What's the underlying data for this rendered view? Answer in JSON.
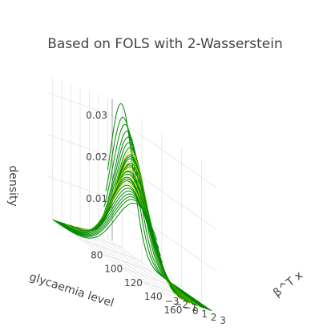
{
  "chart_data": {
    "type": "line",
    "title": "Based on FOLS with 2-Wasserstein",
    "scene": "3d",
    "x_axis": {
      "label": "glycaemia level",
      "ticks": [
        "80",
        "100",
        "120",
        "140",
        "160"
      ],
      "range": [
        70,
        175
      ]
    },
    "y_axis": {
      "label": "β^T x",
      "ticks": [
        "3",
        "2",
        "1",
        "0",
        "−1",
        "−2",
        "−3"
      ],
      "range": [
        -3.5,
        3.5
      ]
    },
    "z_axis": {
      "label": "density",
      "ticks": [
        "0.03",
        "0.02",
        "0.01"
      ],
      "range": [
        0,
        0.034
      ]
    },
    "series_colors": {
      "primary": "#008a00",
      "highlight": "#e8e200"
    },
    "series": [
      {
        "beta": 3.0,
        "mean": 84,
        "sd": 11.5,
        "color": "#008a00"
      },
      {
        "beta": 2.8,
        "mean": 88,
        "sd": 12.5,
        "color": "#008a00"
      },
      {
        "beta": 2.6,
        "mean": 92,
        "sd": 13.0,
        "color": "#008a00"
      },
      {
        "beta": 2.4,
        "mean": 96,
        "sd": 13.5,
        "color": "#008a00"
      },
      {
        "beta": 2.2,
        "mean": 99,
        "sd": 14.0,
        "color": "#008a00"
      },
      {
        "beta": 2.0,
        "mean": 102,
        "sd": 14.5,
        "color": "#008a00"
      },
      {
        "beta": 1.8,
        "mean": 105,
        "sd": 15.0,
        "color": "#008a00"
      },
      {
        "beta": 1.6,
        "mean": 107,
        "sd": 15.5,
        "color": "#e8e200"
      },
      {
        "beta": 1.4,
        "mean": 109,
        "sd": 15.8,
        "color": "#008a00"
      },
      {
        "beta": 1.2,
        "mean": 111,
        "sd": 16.0,
        "color": "#008a00"
      },
      {
        "beta": 1.0,
        "mean": 113,
        "sd": 16.2,
        "color": "#008a00"
      },
      {
        "beta": 0.8,
        "mean": 115,
        "sd": 16.5,
        "color": "#e8e200"
      },
      {
        "beta": 0.6,
        "mean": 117,
        "sd": 16.7,
        "color": "#008a00"
      },
      {
        "beta": 0.4,
        "mean": 118,
        "sd": 17.0,
        "color": "#008a00"
      },
      {
        "beta": 0.2,
        "mean": 120,
        "sd": 17.2,
        "color": "#008a00"
      },
      {
        "beta": 0.0,
        "mean": 121,
        "sd": 17.5,
        "color": "#e8e200"
      },
      {
        "beta": -0.2,
        "mean": 123,
        "sd": 17.8,
        "color": "#008a00"
      },
      {
        "beta": -0.4,
        "mean": 124,
        "sd": 18.0,
        "color": "#008a00"
      },
      {
        "beta": -0.6,
        "mean": 126,
        "sd": 18.3,
        "color": "#008a00"
      },
      {
        "beta": -0.8,
        "mean": 127,
        "sd": 18.5,
        "color": "#e8e200"
      },
      {
        "beta": -1.0,
        "mean": 129,
        "sd": 18.8,
        "color": "#008a00"
      },
      {
        "beta": -1.2,
        "mean": 131,
        "sd": 19.0,
        "color": "#008a00"
      },
      {
        "beta": -1.4,
        "mean": 133,
        "sd": 19.3,
        "color": "#008a00"
      },
      {
        "beta": -1.6,
        "mean": 135,
        "sd": 19.6,
        "color": "#e8e200"
      },
      {
        "beta": -1.8,
        "mean": 137,
        "sd": 20.0,
        "color": "#008a00"
      },
      {
        "beta": -2.0,
        "mean": 140,
        "sd": 20.4,
        "color": "#008a00"
      },
      {
        "beta": -2.2,
        "mean": 143,
        "sd": 20.8,
        "color": "#008a00"
      },
      {
        "beta": -2.4,
        "mean": 146,
        "sd": 21.2,
        "color": "#008a00"
      },
      {
        "beta": -2.6,
        "mean": 149,
        "sd": 21.6,
        "color": "#008a00"
      },
      {
        "beta": -2.8,
        "mean": 152,
        "sd": 22.0,
        "color": "#008a00"
      },
      {
        "beta": -3.0,
        "mean": 156,
        "sd": 22.5,
        "color": "#008a00"
      }
    ]
  }
}
